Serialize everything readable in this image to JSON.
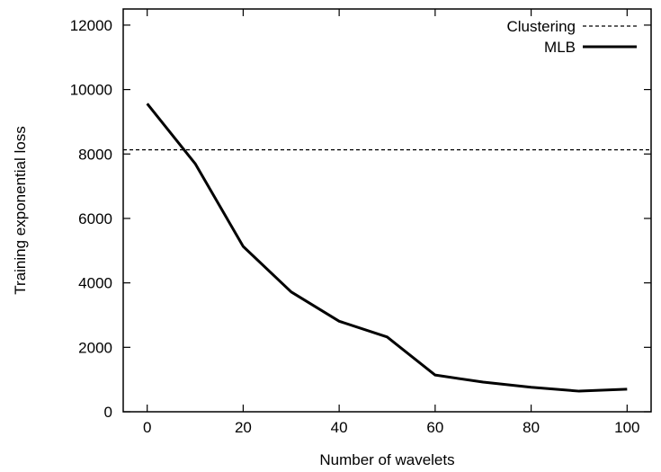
{
  "chart_data": {
    "type": "line",
    "title": "",
    "xlabel": "Number of wavelets",
    "ylabel": "Training exponential loss",
    "xlim": [
      -5,
      105
    ],
    "ylim": [
      0,
      12500
    ],
    "xticks": [
      0,
      20,
      40,
      60,
      80,
      100
    ],
    "yticks": [
      0,
      2000,
      4000,
      6000,
      8000,
      10000,
      12000
    ],
    "legend_position": "top-right",
    "grid": false,
    "series": [
      {
        "name": "Clustering",
        "style": "dashed",
        "color": "#000000",
        "x": [
          -5,
          105
        ],
        "y": [
          8130,
          8130
        ]
      },
      {
        "name": "MLB",
        "style": "solid",
        "color": "#000000",
        "x": [
          0,
          10,
          20,
          30,
          40,
          50,
          60,
          70,
          80,
          90,
          100
        ],
        "y": [
          9560,
          7700,
          5130,
          3720,
          2810,
          2320,
          1140,
          920,
          760,
          640,
          700
        ]
      }
    ]
  }
}
